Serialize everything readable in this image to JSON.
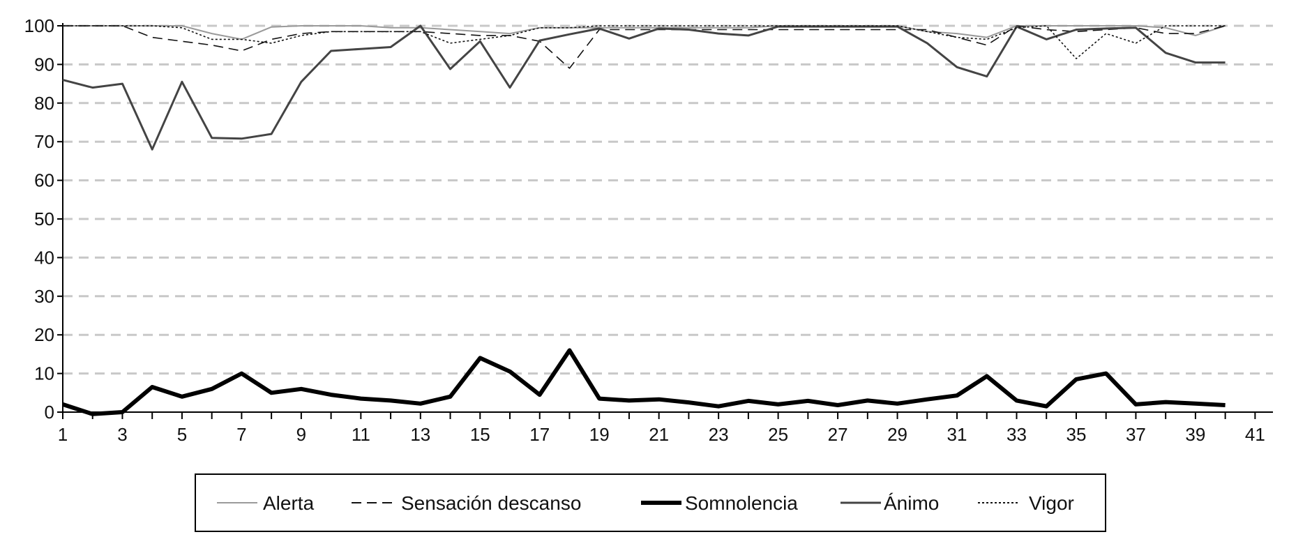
{
  "chart_data": {
    "type": "line",
    "title": "",
    "xlabel": "",
    "ylabel": "",
    "x": [
      1,
      2,
      3,
      4,
      5,
      6,
      7,
      8,
      9,
      10,
      11,
      12,
      13,
      14,
      15,
      16,
      17,
      18,
      19,
      20,
      21,
      22,
      23,
      24,
      25,
      26,
      27,
      28,
      29,
      30,
      31,
      32,
      33,
      34,
      35,
      36,
      37,
      38,
      39,
      40
    ],
    "x_ticks": [
      1,
      3,
      5,
      7,
      9,
      11,
      13,
      15,
      17,
      19,
      21,
      23,
      25,
      27,
      29,
      31,
      33,
      35,
      37,
      39,
      41
    ],
    "xlim": [
      1,
      41.6
    ],
    "y_ticks": [
      0,
      10,
      20,
      30,
      40,
      50,
      60,
      70,
      80,
      90,
      100
    ],
    "ylim": [
      0,
      100
    ],
    "grid": "horizontal dashed",
    "legend_position": "bottom",
    "series": [
      {
        "name": "Alerta",
        "color": "#9a9a9a",
        "stroke_width": 2,
        "dash": "",
        "values": [
          100,
          100,
          100,
          100,
          100,
          98,
          96.5,
          99.7,
          100,
          100,
          100,
          99.5,
          99.5,
          99,
          98.5,
          98,
          99.5,
          99.5,
          99.5,
          99.5,
          99.5,
          99.5,
          99.5,
          99.5,
          100,
          100,
          100,
          100,
          100,
          98.5,
          98,
          97,
          100,
          100,
          100,
          100,
          100,
          99.5,
          97.5,
          100
        ]
      },
      {
        "name": "Sensación descanso",
        "color": "#111111",
        "stroke_width": 1.6,
        "dash": "14 8",
        "values": [
          100,
          100,
          100,
          97,
          96,
          95,
          93.5,
          96.5,
          98,
          98.5,
          98.5,
          98.5,
          98.5,
          98,
          97.5,
          97.5,
          96,
          89,
          99,
          99,
          99,
          99,
          99,
          99,
          99,
          99,
          99,
          99,
          99,
          99,
          97,
          95,
          100,
          99,
          98.5,
          99,
          99.5,
          98,
          98,
          100
        ]
      },
      {
        "name": "Somnolencia",
        "color": "#000000",
        "stroke_width": 6,
        "dash": "",
        "values": [
          2,
          -0.5,
          0,
          6.5,
          4,
          6,
          10,
          5,
          6,
          4.5,
          3.5,
          3,
          2.2,
          4,
          14,
          10.5,
          4.5,
          16,
          3.5,
          3,
          3.3,
          2.5,
          1.5,
          2.9,
          2,
          2.9,
          1.8,
          3,
          2.2,
          3.3,
          4.3,
          9.3,
          3,
          1.5,
          8.5,
          10,
          2,
          2.6,
          2.2,
          1.8
        ]
      },
      {
        "name": "Ánimo",
        "color": "#444444",
        "stroke_width": 3,
        "dash": "",
        "values": [
          86,
          84,
          85,
          68,
          85.5,
          71,
          70.8,
          72,
          85.5,
          93.5,
          94,
          94.5,
          100,
          88.8,
          96,
          84,
          96.2,
          97.8,
          99.3,
          96.7,
          99.3,
          99,
          98,
          97.5,
          99.8,
          99.8,
          99.8,
          99.8,
          99.8,
          95.5,
          89.3,
          86.9,
          99.8,
          96.5,
          99,
          99.3,
          99.5,
          93,
          90.5,
          90.5
        ]
      },
      {
        "name": "Vigor",
        "color": "#111111",
        "stroke_width": 1.6,
        "dash": "3 3",
        "values": [
          100,
          100,
          100,
          100,
          99.5,
          96.5,
          96.5,
          95.5,
          97.5,
          98.5,
          98.5,
          98.5,
          98.5,
          95.5,
          96.5,
          97.5,
          99.5,
          99.5,
          100,
          100,
          100,
          100,
          100,
          100,
          100,
          100,
          100,
          100,
          100,
          98.5,
          97,
          96.5,
          99.5,
          100,
          91.5,
          98,
          95.5,
          100,
          100,
          100
        ]
      }
    ]
  }
}
